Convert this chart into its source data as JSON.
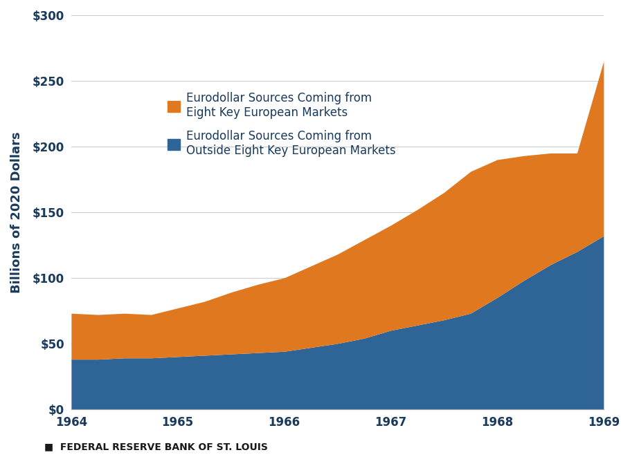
{
  "ylabel": "Billions of 2020 Dollars",
  "xlabel": "",
  "footnote": "■  FEDERAL RESERVE BANK OF ST. LOUIS",
  "x": [
    1964.0,
    1964.25,
    1964.5,
    1964.75,
    1965.0,
    1965.25,
    1965.5,
    1965.75,
    1966.0,
    1966.25,
    1966.5,
    1966.75,
    1967.0,
    1967.25,
    1967.5,
    1967.75,
    1968.0,
    1968.25,
    1968.5,
    1968.75,
    1969.0
  ],
  "blue_series": [
    38,
    38,
    39,
    39,
    40,
    41,
    42,
    43,
    44,
    47,
    50,
    54,
    60,
    64,
    68,
    73,
    85,
    98,
    110,
    120,
    132
  ],
  "orange_series": [
    35,
    34,
    34,
    33,
    37,
    41,
    47,
    52,
    56,
    62,
    68,
    75,
    80,
    88,
    97,
    108,
    105,
    95,
    85,
    75,
    133
  ],
  "blue_color": "#2E6496",
  "orange_color": "#E07820",
  "ylim": [
    0,
    300
  ],
  "xlim": [
    1964.0,
    1969.0
  ],
  "yticks": [
    0,
    50,
    100,
    150,
    200,
    250,
    300
  ],
  "ytick_labels": [
    "$0",
    "$50",
    "$100",
    "$150",
    "$200",
    "$250",
    "$300"
  ],
  "xticks": [
    1964,
    1965,
    1966,
    1967,
    1968,
    1969
  ],
  "legend_orange": "Eurodollar Sources Coming from\nEight Key European Markets",
  "legend_blue": "Eurodollar Sources Coming from\nOutside Eight Key European Markets",
  "background_color": "#ffffff",
  "plot_bg_color": "#ffffff"
}
